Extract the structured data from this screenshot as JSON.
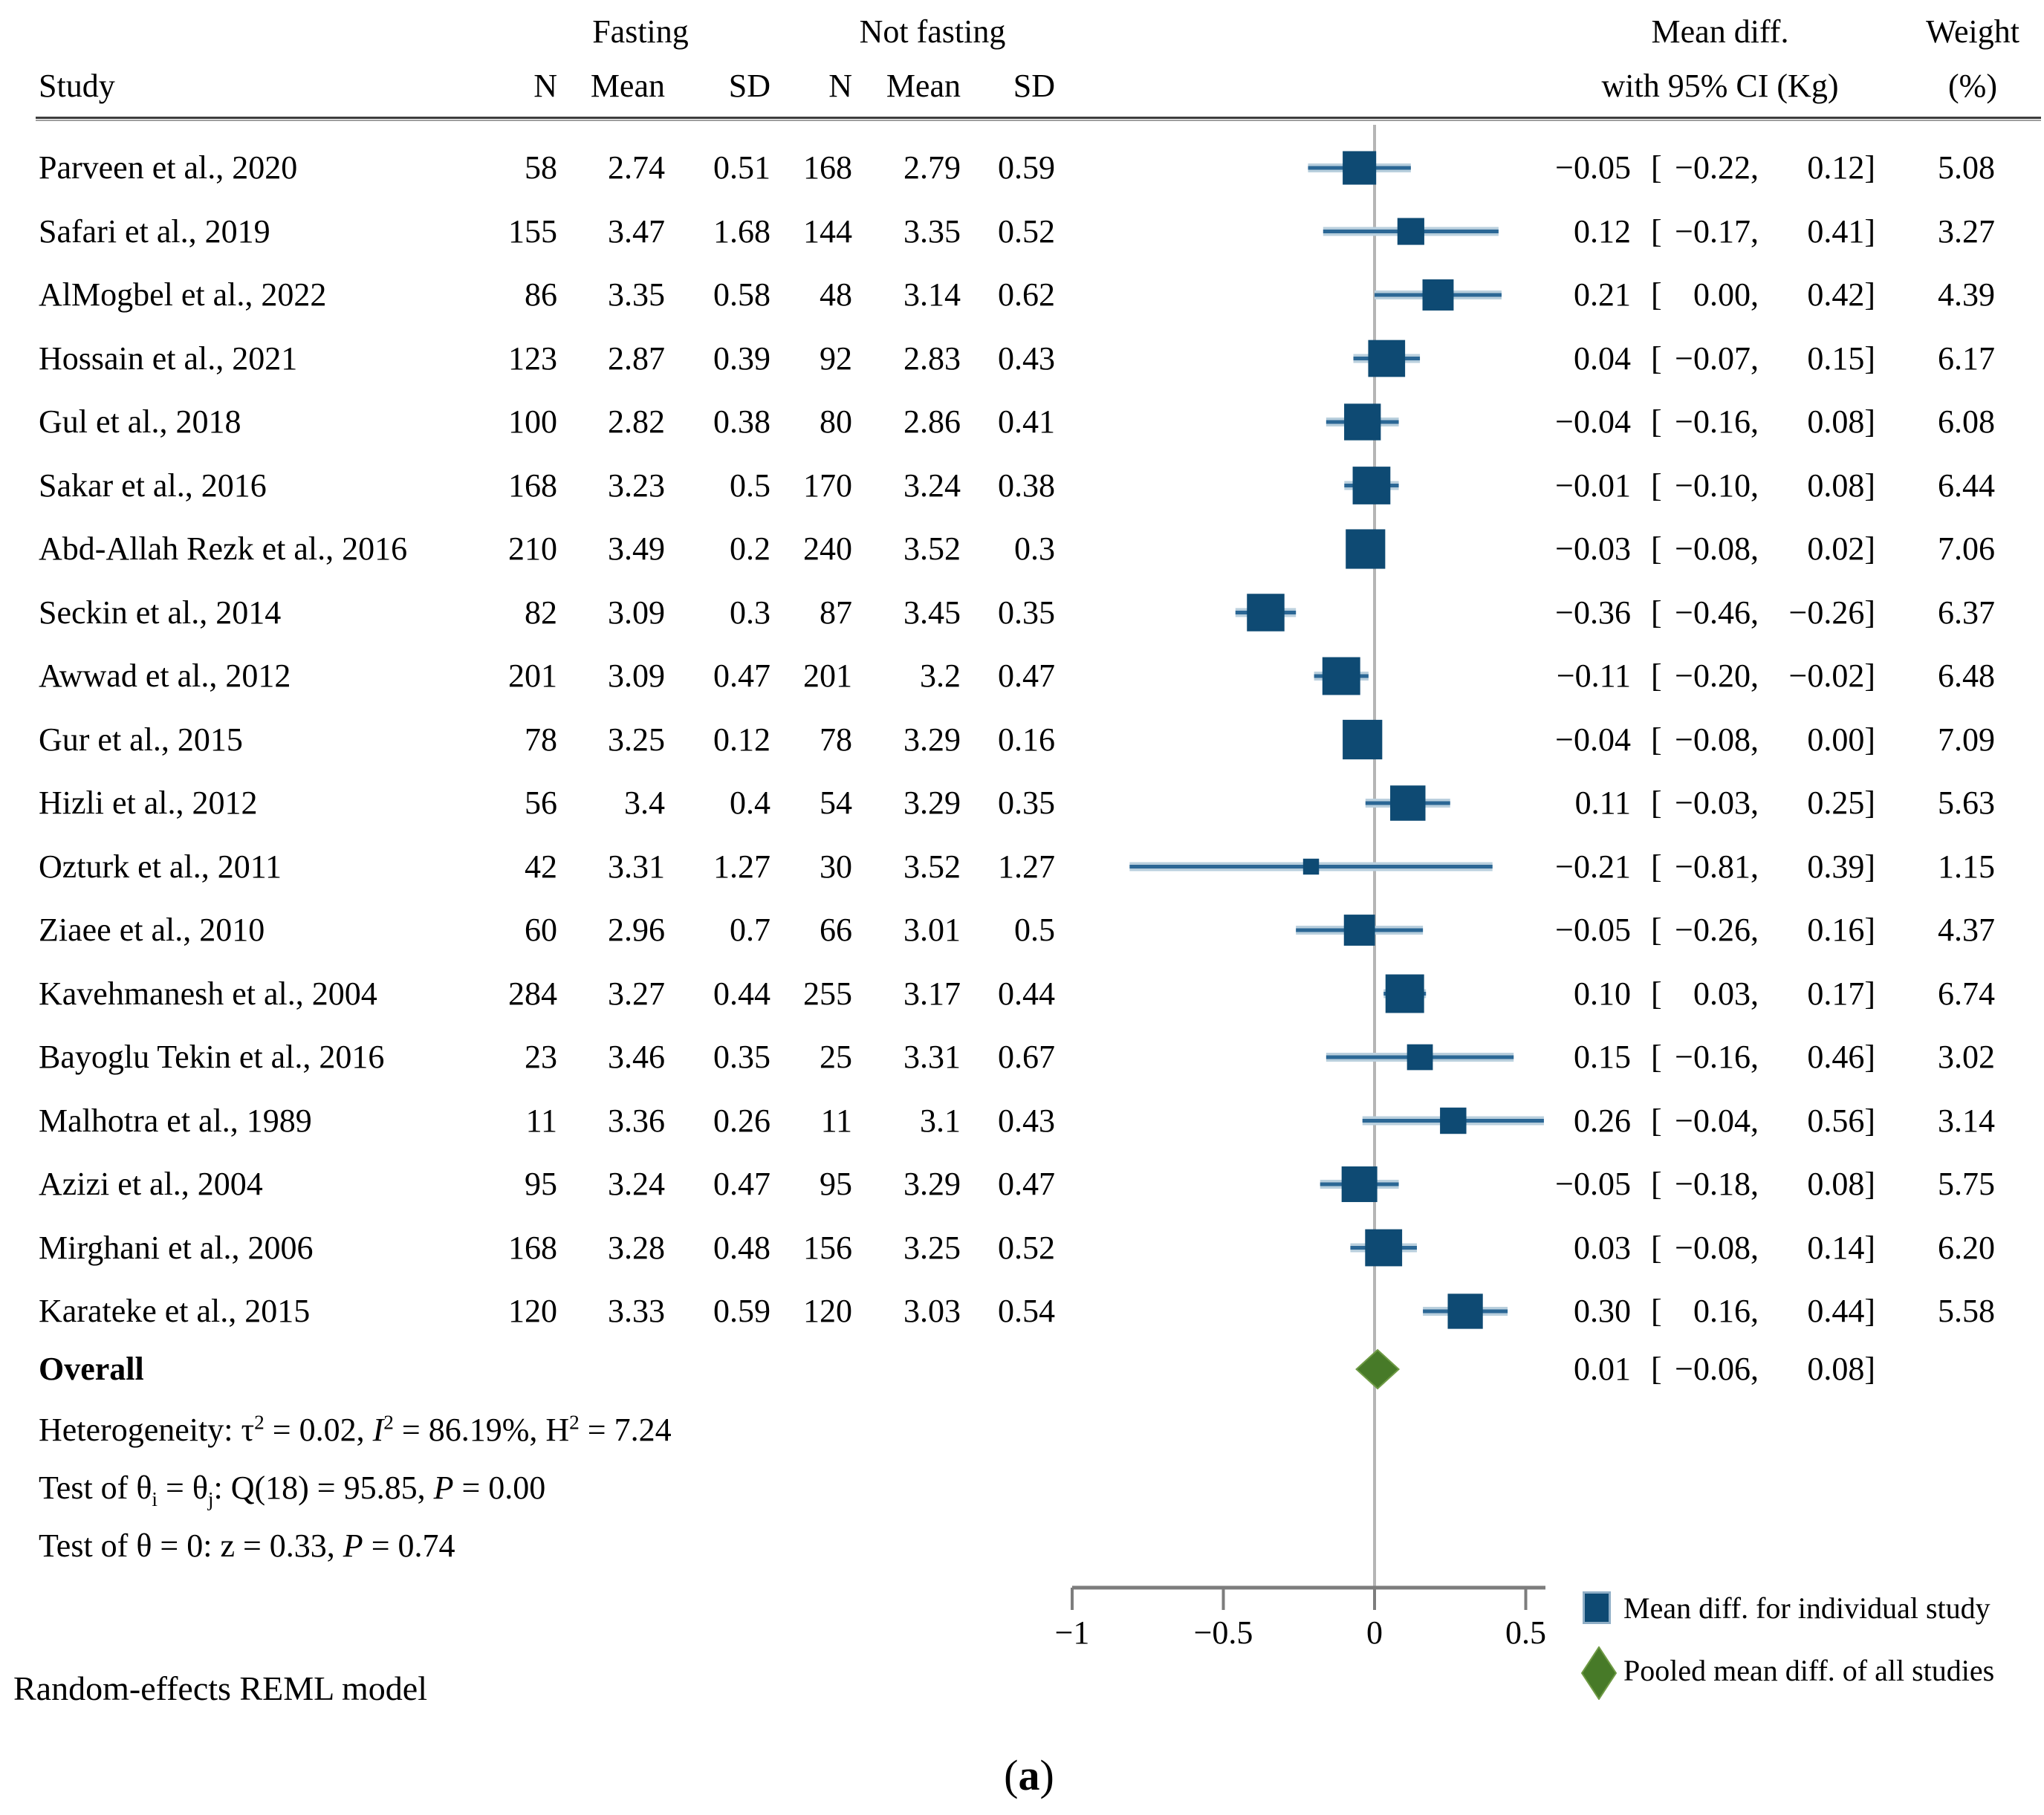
{
  "header": {
    "study": "Study",
    "group1": "Fasting",
    "group2": "Not fasting",
    "n": "N",
    "mean": "Mean",
    "sd": "SD",
    "effect_line1": "Mean diff.",
    "effect_line2": "with 95% CI (Kg)",
    "weight_line1": "Weight",
    "weight_line2": "(%)"
  },
  "strings": {
    "ci_open": "["
  },
  "rows": [
    {
      "study": "Parveen et al., 2020",
      "n1": "58",
      "mean1": "2.74",
      "sd1": "0.51",
      "n2": "168",
      "mean2": "2.79",
      "sd2": "0.59",
      "md": "−0.05",
      "lo": "−0.22,",
      "hi": "0.12]",
      "weight": "5.08"
    },
    {
      "study": "Safari et al., 2019",
      "n1": "155",
      "mean1": "3.47",
      "sd1": "1.68",
      "n2": "144",
      "mean2": "3.35",
      "sd2": "0.52",
      "md": "0.12",
      "lo": "−0.17,",
      "hi": "0.41]",
      "weight": "3.27"
    },
    {
      "study": "AlMogbel et al., 2022",
      "n1": "86",
      "mean1": "3.35",
      "sd1": "0.58",
      "n2": "48",
      "mean2": "3.14",
      "sd2": "0.62",
      "md": "0.21",
      "lo": "0.00,",
      "hi": "0.42]",
      "weight": "4.39"
    },
    {
      "study": "Hossain et al., 2021",
      "n1": "123",
      "mean1": "2.87",
      "sd1": "0.39",
      "n2": "92",
      "mean2": "2.83",
      "sd2": "0.43",
      "md": "0.04",
      "lo": "−0.07,",
      "hi": "0.15]",
      "weight": "6.17"
    },
    {
      "study": "Gul et al., 2018",
      "n1": "100",
      "mean1": "2.82",
      "sd1": "0.38",
      "n2": "80",
      "mean2": "2.86",
      "sd2": "0.41",
      "md": "−0.04",
      "lo": "−0.16,",
      "hi": "0.08]",
      "weight": "6.08"
    },
    {
      "study": "Sakar et al., 2016",
      "n1": "168",
      "mean1": "3.23",
      "sd1": "0.5",
      "n2": "170",
      "mean2": "3.24",
      "sd2": "0.38",
      "md": "−0.01",
      "lo": "−0.10,",
      "hi": "0.08]",
      "weight": "6.44"
    },
    {
      "study": "Abd-Allah Rezk et al., 2016",
      "n1": "210",
      "mean1": "3.49",
      "sd1": "0.2",
      "n2": "240",
      "mean2": "3.52",
      "sd2": "0.3",
      "md": "−0.03",
      "lo": "−0.08,",
      "hi": "0.02]",
      "weight": "7.06"
    },
    {
      "study": "Seckin et al., 2014",
      "n1": "82",
      "mean1": "3.09",
      "sd1": "0.3",
      "n2": "87",
      "mean2": "3.45",
      "sd2": "0.35",
      "md": "−0.36",
      "lo": "−0.46,",
      "hi": "−0.26]",
      "weight": "6.37"
    },
    {
      "study": "Awwad et al., 2012",
      "n1": "201",
      "mean1": "3.09",
      "sd1": "0.47",
      "n2": "201",
      "mean2": "3.2",
      "sd2": "0.47",
      "md": "−0.11",
      "lo": "−0.20,",
      "hi": "−0.02]",
      "weight": "6.48"
    },
    {
      "study": "Gur et al., 2015",
      "n1": "78",
      "mean1": "3.25",
      "sd1": "0.12",
      "n2": "78",
      "mean2": "3.29",
      "sd2": "0.16",
      "md": "−0.04",
      "lo": "−0.08,",
      "hi": "0.00]",
      "weight": "7.09"
    },
    {
      "study": "Hizli et al., 2012",
      "n1": "56",
      "mean1": "3.4",
      "sd1": "0.4",
      "n2": "54",
      "mean2": "3.29",
      "sd2": "0.35",
      "md": "0.11",
      "lo": "−0.03,",
      "hi": "0.25]",
      "weight": "5.63"
    },
    {
      "study": "Ozturk et al., 2011",
      "n1": "42",
      "mean1": "3.31",
      "sd1": "1.27",
      "n2": "30",
      "mean2": "3.52",
      "sd2": "1.27",
      "md": "−0.21",
      "lo": "−0.81,",
      "hi": "0.39]",
      "weight": "1.15"
    },
    {
      "study": "Ziaee et al., 2010",
      "n1": "60",
      "mean1": "2.96",
      "sd1": "0.7",
      "n2": "66",
      "mean2": "3.01",
      "sd2": "0.5",
      "md": "−0.05",
      "lo": "−0.26,",
      "hi": "0.16]",
      "weight": "4.37"
    },
    {
      "study": "Kavehmanesh et al., 2004",
      "n1": "284",
      "mean1": "3.27",
      "sd1": "0.44",
      "n2": "255",
      "mean2": "3.17",
      "sd2": "0.44",
      "md": "0.10",
      "lo": "0.03,",
      "hi": "0.17]",
      "weight": "6.74"
    },
    {
      "study": "Bayoglu Tekin et al., 2016",
      "n1": "23",
      "mean1": "3.46",
      "sd1": "0.35",
      "n2": "25",
      "mean2": "3.31",
      "sd2": "0.67",
      "md": "0.15",
      "lo": "−0.16,",
      "hi": "0.46]",
      "weight": "3.02"
    },
    {
      "study": "Malhotra et al., 1989",
      "n1": "11",
      "mean1": "3.36",
      "sd1": "0.26",
      "n2": "11",
      "mean2": "3.1",
      "sd2": "0.43",
      "md": "0.26",
      "lo": "−0.04,",
      "hi": "0.56]",
      "weight": "3.14"
    },
    {
      "study": "Azizi et al., 2004",
      "n1": "95",
      "mean1": "3.24",
      "sd1": "0.47",
      "n2": "95",
      "mean2": "3.29",
      "sd2": "0.47",
      "md": "−0.05",
      "lo": "−0.18,",
      "hi": "0.08]",
      "weight": "5.75"
    },
    {
      "study": "Mirghani et al., 2006",
      "n1": "168",
      "mean1": "3.28",
      "sd1": "0.48",
      "n2": "156",
      "mean2": "3.25",
      "sd2": "0.52",
      "md": "0.03",
      "lo": "−0.08,",
      "hi": "0.14]",
      "weight": "6.20"
    },
    {
      "study": "Karateke et al., 2015",
      "n1": "120",
      "mean1": "3.33",
      "sd1": "0.59",
      "n2": "120",
      "mean2": "3.03",
      "sd2": "0.54",
      "md": "0.30",
      "lo": "0.16,",
      "hi": "0.44]",
      "weight": "5.58"
    }
  ],
  "overall_row": {
    "label": "Overall",
    "md": "0.01",
    "lo": "−0.06,",
    "hi": "0.08]"
  },
  "stats": {
    "heterogeneity": [
      {
        "t": "Heterogeneity: τ"
      },
      {
        "sup": "2"
      },
      {
        "t": " = 0.02, "
      },
      {
        "i": "I"
      },
      {
        "sup": "2"
      },
      {
        "t": " = 86.19%, H"
      },
      {
        "sup": "2"
      },
      {
        "t": " = 7.24"
      }
    ],
    "test_between": [
      {
        "t": "Test of θ"
      },
      {
        "sub": "i"
      },
      {
        "t": " = θ"
      },
      {
        "sub": "j"
      },
      {
        "t": ": Q(18) = 95.85, "
      },
      {
        "i": "P"
      },
      {
        "t": " = 0.00"
      }
    ],
    "test_overall": [
      {
        "t": "Test of θ = 0: z = 0.33, "
      },
      {
        "i": "P"
      },
      {
        "t": " = 0.74"
      }
    ]
  },
  "axis": {
    "ticks": [
      {
        "label": "−1",
        "v": -1
      },
      {
        "label": "−0.5",
        "v": -0.5
      },
      {
        "label": "0",
        "v": 0
      },
      {
        "label": "0.5",
        "v": 0.5
      }
    ]
  },
  "legend": {
    "individual": "Mean diff. for individual study",
    "pooled": "Pooled mean diff. of all studies"
  },
  "footer": {
    "model": "Random-effects REML model",
    "caption_open": "(",
    "caption_letter": "a",
    "caption_close": ")"
  },
  "colors": {
    "marker_blue": "#0E4A73",
    "ci_core": "#2B6795",
    "ci_halo": "#B9CFDD",
    "pooled_green": "#477A28",
    "pooled_green_edge": "#6E9A44",
    "zero_line": "#B5B5B5",
    "axis_line": "#7D7D7D",
    "text": "#000000"
  },
  "chart_data": {
    "type": "forest",
    "title": "Mean difference in birth weight (Kg), fasting vs not fasting",
    "effect_label": "Mean diff. with 95% CI (Kg)",
    "xlim": [
      -1,
      0.565
    ],
    "tick_values": [
      -1,
      -0.5,
      0,
      0.5
    ],
    "zero_reference": 0,
    "studies": [
      {
        "name": "Parveen et al., 2020",
        "md": -0.05,
        "ci": [
          -0.22,
          0.12
        ],
        "weight": 5.08
      },
      {
        "name": "Safari et al., 2019",
        "md": 0.12,
        "ci": [
          -0.17,
          0.41
        ],
        "weight": 3.27
      },
      {
        "name": "AlMogbel et al., 2022",
        "md": 0.21,
        "ci": [
          0.0,
          0.42
        ],
        "weight": 4.39
      },
      {
        "name": "Hossain et al., 2021",
        "md": 0.04,
        "ci": [
          -0.07,
          0.15
        ],
        "weight": 6.17
      },
      {
        "name": "Gul et al., 2018",
        "md": -0.04,
        "ci": [
          -0.16,
          0.08
        ],
        "weight": 6.08
      },
      {
        "name": "Sakar et al., 2016",
        "md": -0.01,
        "ci": [
          -0.1,
          0.08
        ],
        "weight": 6.44
      },
      {
        "name": "Abd-Allah Rezk et al., 2016",
        "md": -0.03,
        "ci": [
          -0.08,
          0.02
        ],
        "weight": 7.06
      },
      {
        "name": "Seckin et al., 2014",
        "md": -0.36,
        "ci": [
          -0.46,
          -0.26
        ],
        "weight": 6.37
      },
      {
        "name": "Awwad et al., 2012",
        "md": -0.11,
        "ci": [
          -0.2,
          -0.02
        ],
        "weight": 6.48
      },
      {
        "name": "Gur et al., 2015",
        "md": -0.04,
        "ci": [
          -0.08,
          0.0
        ],
        "weight": 7.09
      },
      {
        "name": "Hizli et al., 2012",
        "md": 0.11,
        "ci": [
          -0.03,
          0.25
        ],
        "weight": 5.63
      },
      {
        "name": "Ozturk et al., 2011",
        "md": -0.21,
        "ci": [
          -0.81,
          0.39
        ],
        "weight": 1.15
      },
      {
        "name": "Ziaee et al., 2010",
        "md": -0.05,
        "ci": [
          -0.26,
          0.16
        ],
        "weight": 4.37
      },
      {
        "name": "Kavehmanesh et al., 2004",
        "md": 0.1,
        "ci": [
          0.03,
          0.17
        ],
        "weight": 6.74
      },
      {
        "name": "Bayoglu Tekin et al., 2016",
        "md": 0.15,
        "ci": [
          -0.16,
          0.46
        ],
        "weight": 3.02
      },
      {
        "name": "Malhotra et al., 1989",
        "md": 0.26,
        "ci": [
          -0.04,
          0.56
        ],
        "weight": 3.14
      },
      {
        "name": "Azizi et al., 2004",
        "md": -0.05,
        "ci": [
          -0.18,
          0.08
        ],
        "weight": 5.75
      },
      {
        "name": "Mirghani et al., 2006",
        "md": 0.03,
        "ci": [
          -0.08,
          0.14
        ],
        "weight": 6.2
      },
      {
        "name": "Karateke et al., 2015",
        "md": 0.3,
        "ci": [
          0.16,
          0.44
        ],
        "weight": 5.58
      }
    ],
    "overall": {
      "md": 0.01,
      "ci": [
        -0.06,
        0.08
      ]
    },
    "heterogeneity": {
      "tau2": 0.02,
      "I2_pct": 86.19,
      "H2": 7.24,
      "Q_df": 18,
      "Q": 95.85,
      "Q_P": 0.0,
      "z": 0.33,
      "z_P": 0.74
    },
    "model": "Random-effects REML model"
  }
}
